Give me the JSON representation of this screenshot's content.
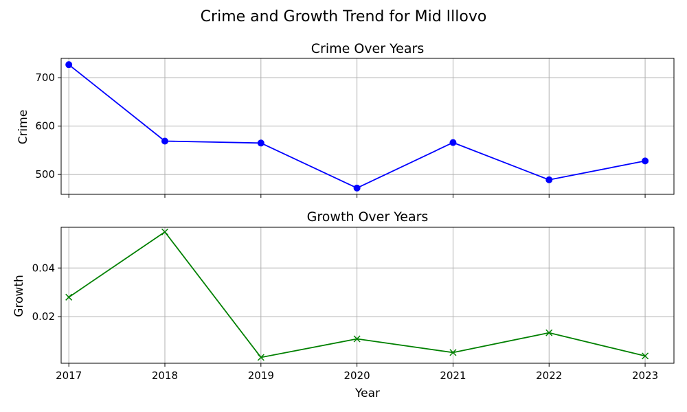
{
  "figure": {
    "suptitle": "Crime and Growth Trend for Mid Illovo"
  },
  "chart_data": [
    {
      "type": "line",
      "title": "Crime Over Years",
      "xlabel": "",
      "ylabel": "Crime",
      "x": [
        2017,
        2018,
        2019,
        2020,
        2021,
        2022,
        2023
      ],
      "series": [
        {
          "values": [
            727,
            569,
            565,
            472,
            566,
            489,
            528
          ],
          "color": "#0000ff",
          "marker": "circle"
        }
      ],
      "xlim": [
        2016.92,
        2023.3
      ],
      "ylim": [
        459,
        740
      ],
      "xticks": [
        2017,
        2018,
        2019,
        2020,
        2021,
        2022,
        2023
      ],
      "xtick_labels_shown": false,
      "yticks": [
        500,
        600,
        700
      ],
      "ytick_labels": [
        "500",
        "600",
        "700"
      ],
      "grid": true
    },
    {
      "type": "line",
      "title": "Growth Over Years",
      "xlabel": "Year",
      "ylabel": "Growth",
      "x": [
        2017,
        2018,
        2019,
        2020,
        2021,
        2022,
        2023
      ],
      "series": [
        {
          "values": [
            0.028,
            0.0548,
            0.0033,
            0.0109,
            0.0053,
            0.0134,
            0.0039
          ],
          "color": "#008000",
          "marker": "x"
        }
      ],
      "xlim": [
        2016.92,
        2023.3
      ],
      "ylim": [
        0.0009,
        0.0567
      ],
      "xticks": [
        2017,
        2018,
        2019,
        2020,
        2021,
        2022,
        2023
      ],
      "xtick_labels": [
        "2017",
        "2018",
        "2019",
        "2020",
        "2021",
        "2022",
        "2023"
      ],
      "yticks": [
        0.02,
        0.04
      ],
      "ytick_labels": [
        "0.02",
        "0.04"
      ],
      "grid": true
    }
  ]
}
